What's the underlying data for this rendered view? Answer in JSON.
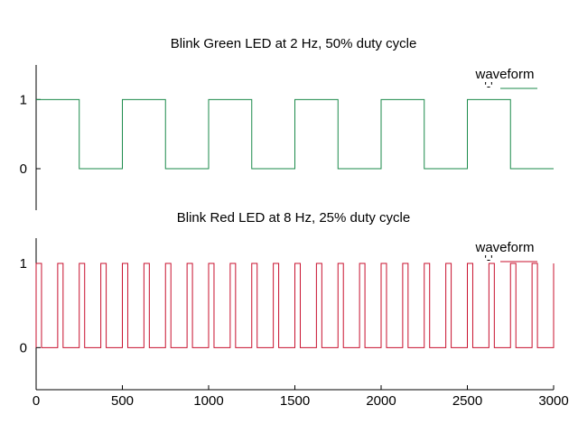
{
  "chart_data": [
    {
      "type": "line",
      "step": true,
      "title": "Blink Green LED at 2 Hz, 50% duty cycle",
      "xlim": [
        0,
        3000
      ],
      "ylim": [
        -0.6,
        1.5
      ],
      "yticks": [
        0,
        1
      ],
      "show_xticks": false,
      "grid": false,
      "legend_position": "top-right",
      "legend_title": "waveform",
      "series": [
        {
          "name": "'-'",
          "color": "#1a8a4a",
          "x": [
            0,
            250,
            500,
            750,
            1000,
            1250,
            1500,
            1750,
            2000,
            2250,
            2500,
            2750,
            3000
          ],
          "y": [
            1,
            0,
            1,
            0,
            1,
            0,
            1,
            0,
            1,
            0,
            1,
            0,
            0
          ]
        }
      ]
    },
    {
      "type": "line",
      "step": true,
      "title": "Blink Red LED at 8 Hz, 25% duty cycle",
      "xlim": [
        0,
        3000
      ],
      "ylim": [
        -0.5,
        1.3
      ],
      "yticks": [
        0,
        1
      ],
      "xticks": [
        0,
        500,
        1000,
        1500,
        2000,
        2500,
        3000
      ],
      "show_xticks": true,
      "grid": false,
      "legend_position": "top-right",
      "legend_title": "waveform",
      "series": [
        {
          "name": "'-'",
          "color": "#c8102e",
          "period": 125,
          "on_duration": 31.25
        }
      ]
    }
  ]
}
